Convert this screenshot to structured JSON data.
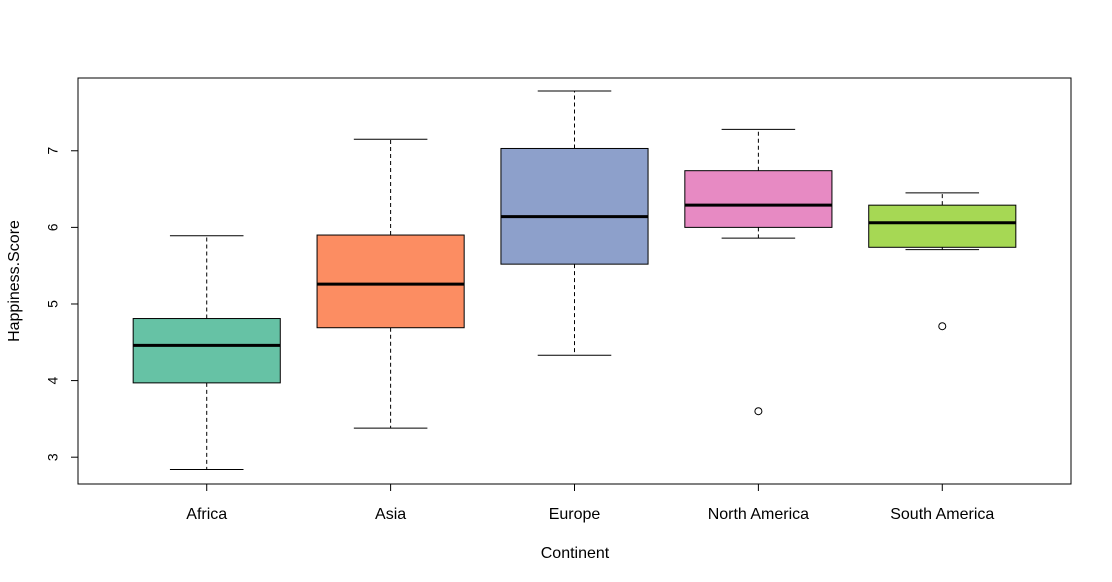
{
  "chart_data": {
    "type": "boxplot",
    "title": "",
    "xlabel": "Continent",
    "ylabel": "Happiness.Score",
    "ylim": [
      2.65,
      7.95
    ],
    "y_ticks": [
      3,
      4,
      5,
      6,
      7
    ],
    "grid": false,
    "categories": [
      "Africa",
      "Asia",
      "Europe",
      "North America",
      "South America"
    ],
    "colors": [
      "#66c2a5",
      "#fc8d62",
      "#8da0cb",
      "#e78ac3",
      "#a6d854"
    ],
    "boxes": [
      {
        "category": "Africa",
        "whisker_low": 2.84,
        "q1": 3.97,
        "median": 4.46,
        "q3": 4.81,
        "whisker_high": 5.89,
        "outliers": []
      },
      {
        "category": "Asia",
        "whisker_low": 3.38,
        "q1": 4.69,
        "median": 5.26,
        "q3": 5.9,
        "whisker_high": 7.15,
        "outliers": []
      },
      {
        "category": "Europe",
        "whisker_low": 4.33,
        "q1": 5.52,
        "median": 6.14,
        "q3": 7.03,
        "whisker_high": 7.78,
        "outliers": []
      },
      {
        "category": "North America",
        "whisker_low": 5.86,
        "q1": 6.0,
        "median": 6.29,
        "q3": 6.74,
        "whisker_high": 7.28,
        "outliers": [
          3.6
        ]
      },
      {
        "category": "South America",
        "whisker_low": 5.71,
        "q1": 5.74,
        "median": 6.06,
        "q3": 6.29,
        "whisker_high": 6.45,
        "outliers": [
          4.71
        ]
      }
    ]
  }
}
